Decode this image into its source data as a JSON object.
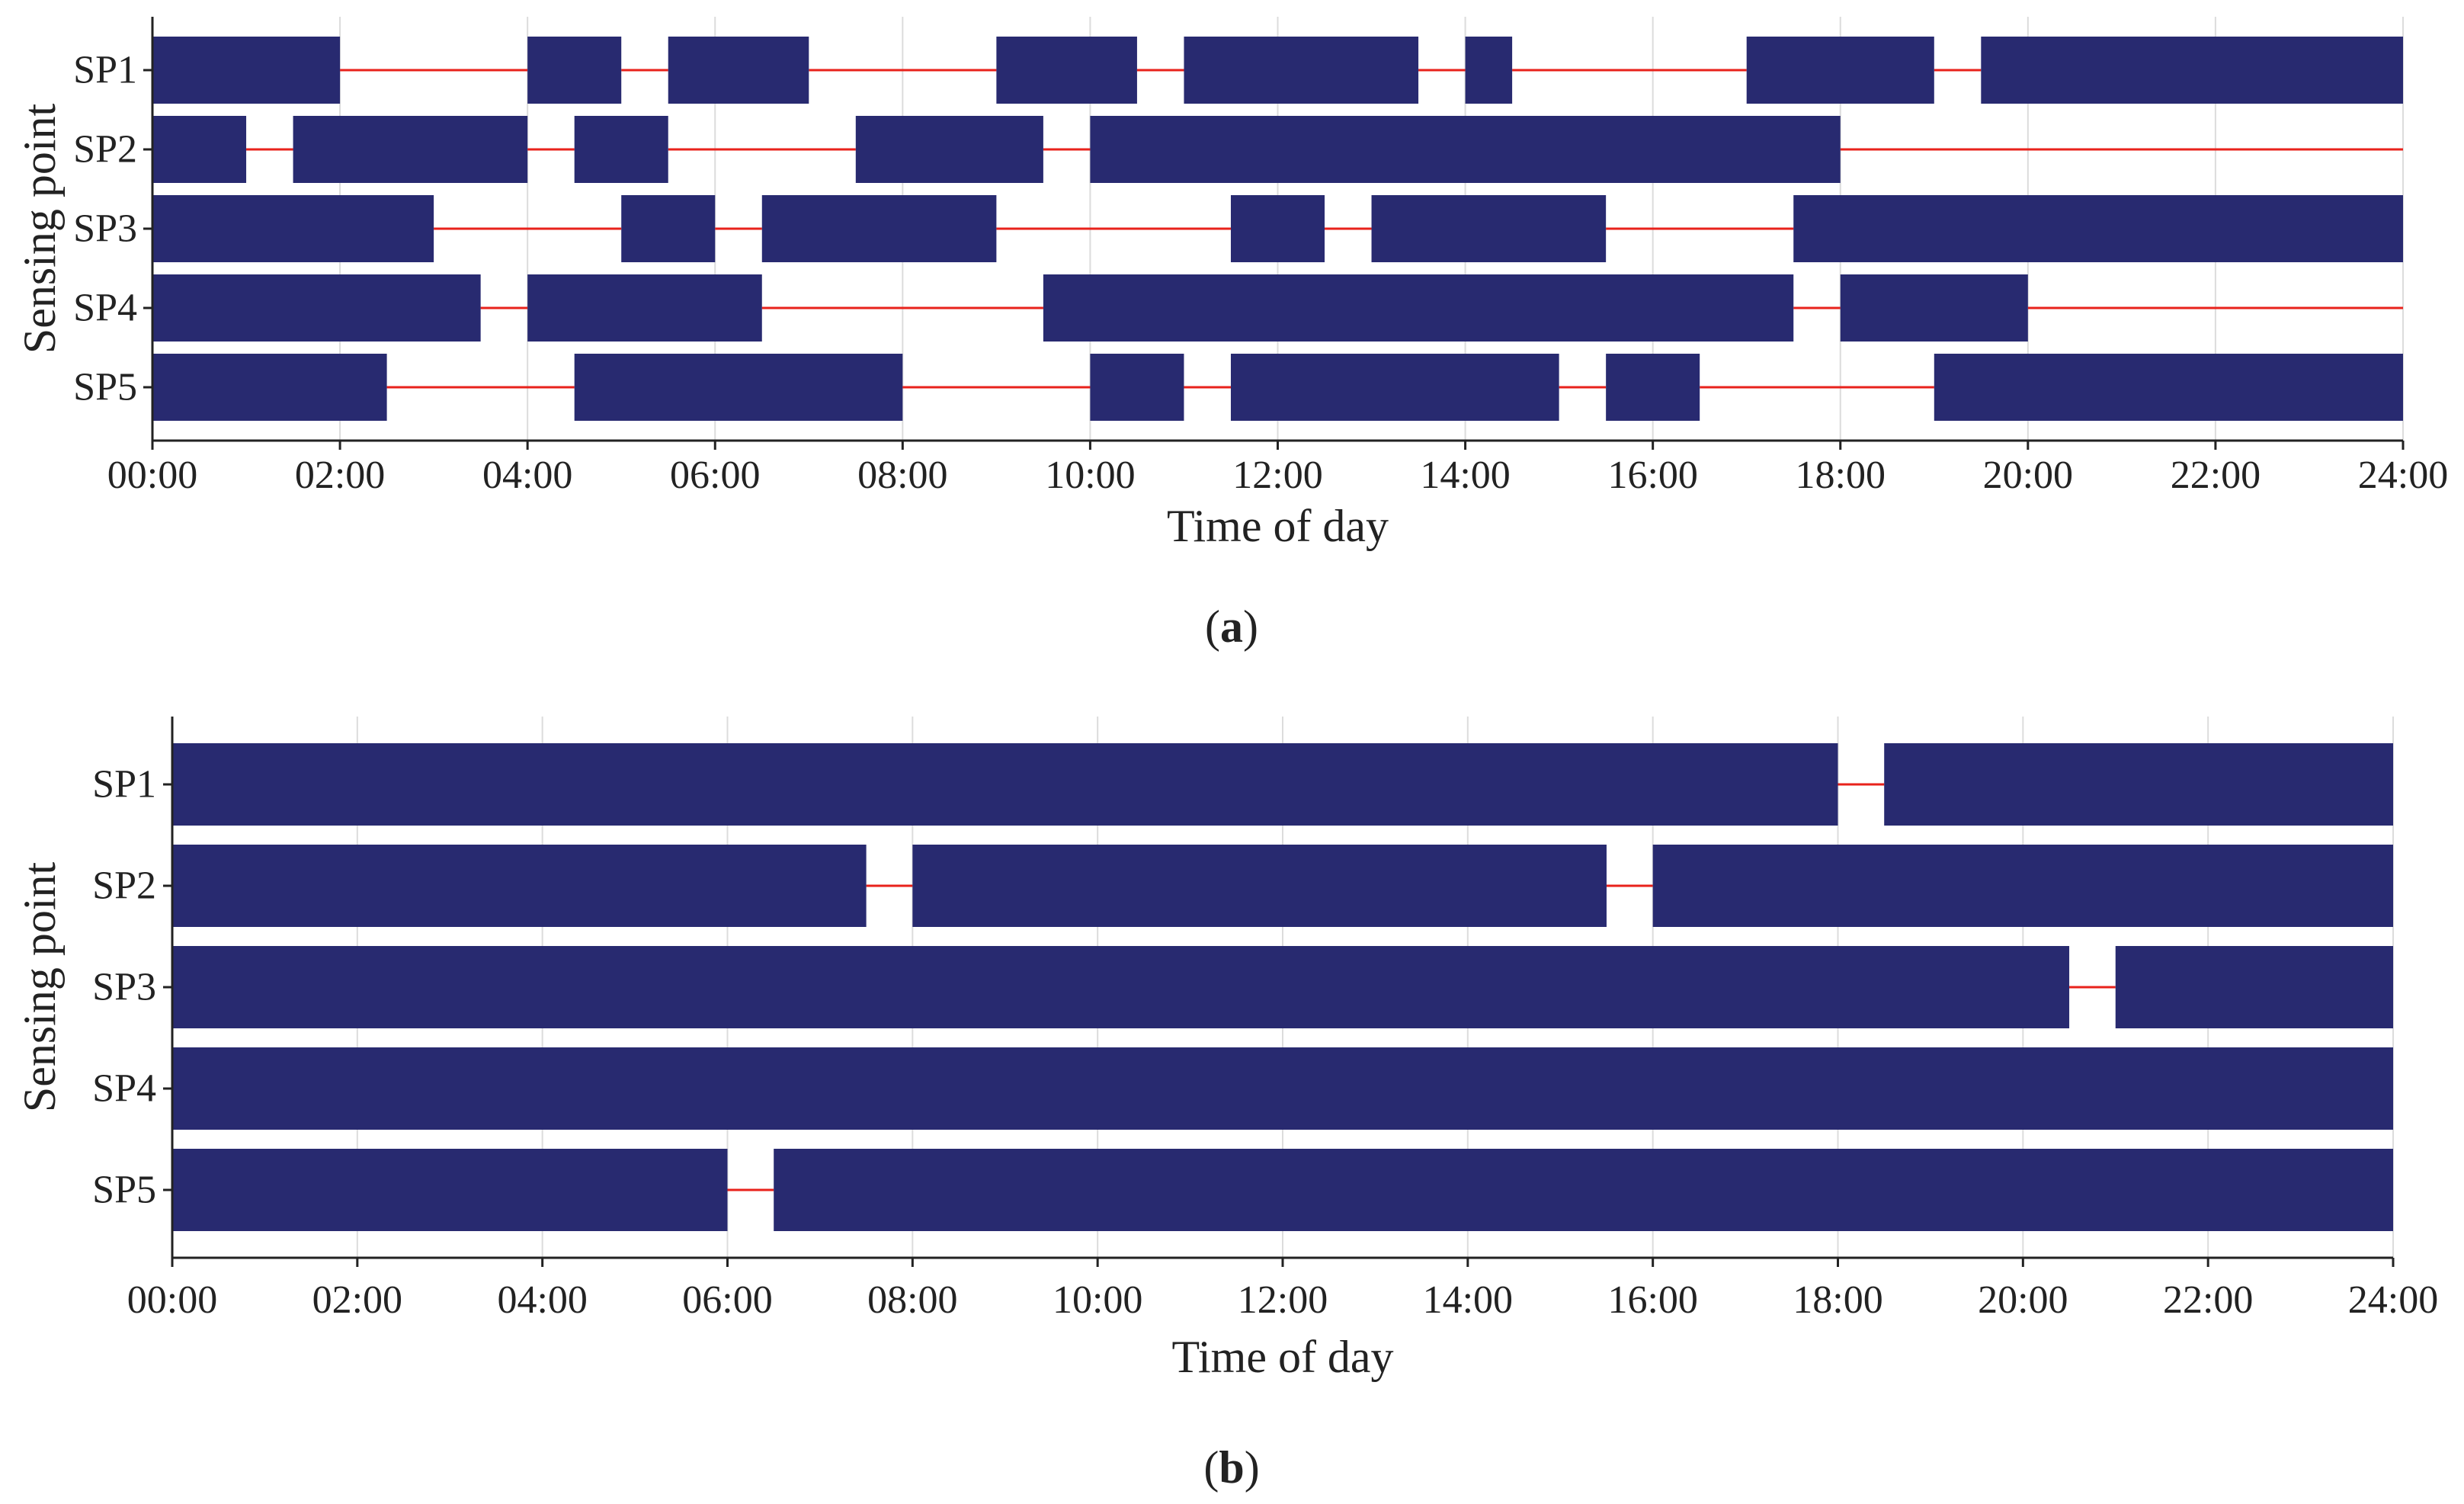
{
  "colors": {
    "bar": "#282a70",
    "gap_line": "#e8221b",
    "grid": "#dcdcdc",
    "axis": "#222222"
  },
  "chart_data": [
    {
      "type": "bar",
      "orientation": "horizontal-timeline",
      "panel_label": "a",
      "xlabel": "Time of day",
      "ylabel": "Sensing point",
      "xlim": [
        0,
        24
      ],
      "x_ticks": [
        "00:00",
        "02:00",
        "04:00",
        "06:00",
        "08:00",
        "10:00",
        "12:00",
        "14:00",
        "16:00",
        "18:00",
        "20:00",
        "22:00",
        "24:00"
      ],
      "grid": "vertical",
      "series": [
        {
          "name": "SP1",
          "segments": [
            [
              0,
              2
            ],
            [
              4,
              5
            ],
            [
              5.5,
              7
            ],
            [
              9,
              10.5
            ],
            [
              11,
              13.5
            ],
            [
              14,
              14.5
            ],
            [
              17,
              19
            ],
            [
              19.5,
              24
            ]
          ]
        },
        {
          "name": "SP2",
          "segments": [
            [
              0,
              1
            ],
            [
              1.5,
              4
            ],
            [
              4.5,
              5.5
            ],
            [
              7.5,
              9.5
            ],
            [
              10,
              18
            ]
          ]
        },
        {
          "name": "SP3",
          "segments": [
            [
              0,
              3
            ],
            [
              5,
              6
            ],
            [
              6.5,
              9
            ],
            [
              11.5,
              12.5
            ],
            [
              13,
              15.5
            ],
            [
              17.5,
              24
            ]
          ]
        },
        {
          "name": "SP4",
          "segments": [
            [
              0,
              3.5
            ],
            [
              4,
              6.5
            ],
            [
              9.5,
              17.5
            ],
            [
              18,
              20
            ]
          ]
        },
        {
          "name": "SP5",
          "segments": [
            [
              0,
              2.5
            ],
            [
              4.5,
              8
            ],
            [
              10,
              11
            ],
            [
              11.5,
              15
            ],
            [
              15.5,
              16.5
            ],
            [
              19,
              24
            ]
          ]
        }
      ]
    },
    {
      "type": "bar",
      "orientation": "horizontal-timeline",
      "panel_label": "b",
      "xlabel": "Time of day",
      "ylabel": "Sensing point",
      "xlim": [
        0,
        24
      ],
      "x_ticks": [
        "00:00",
        "02:00",
        "04:00",
        "06:00",
        "08:00",
        "10:00",
        "12:00",
        "14:00",
        "16:00",
        "18:00",
        "20:00",
        "22:00",
        "24:00"
      ],
      "grid": "vertical",
      "series": [
        {
          "name": "SP1",
          "segments": [
            [
              0,
              18
            ],
            [
              18.5,
              24
            ]
          ]
        },
        {
          "name": "SP2",
          "segments": [
            [
              0,
              7.5
            ],
            [
              8,
              15.5
            ],
            [
              16,
              24
            ]
          ]
        },
        {
          "name": "SP3",
          "segments": [
            [
              0,
              20.5
            ],
            [
              21,
              24
            ]
          ]
        },
        {
          "name": "SP4",
          "segments": [
            [
              0,
              24
            ]
          ]
        },
        {
          "name": "SP5",
          "segments": [
            [
              0,
              6
            ],
            [
              6.5,
              24
            ]
          ]
        }
      ]
    }
  ]
}
